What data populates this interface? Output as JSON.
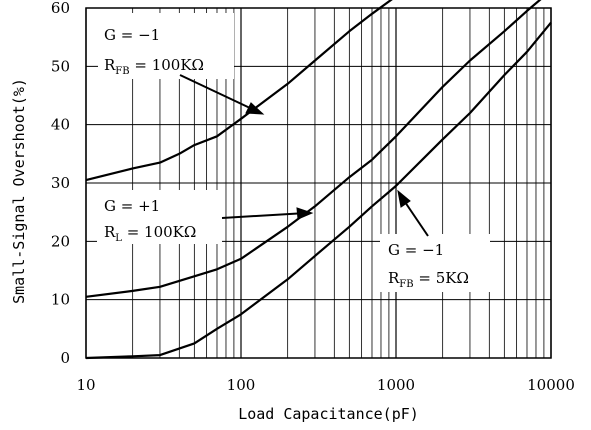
{
  "chart_data": {
    "type": "line",
    "xlabel": "Load Capacitance(pF)",
    "ylabel": "Small-Signal Overshoot(%)",
    "x_scale": "log",
    "xlim": [
      10,
      10000
    ],
    "ylim": [
      0,
      60
    ],
    "xticks": [
      10,
      100,
      1000,
      10000
    ],
    "xtick_labels": [
      "10",
      "100",
      "1000",
      "10000"
    ],
    "yticks": [
      0,
      10,
      20,
      30,
      40,
      50,
      60
    ],
    "ytick_labels": [
      "0",
      "10",
      "20",
      "30",
      "40",
      "50",
      "60"
    ],
    "grid": true,
    "series": [
      {
        "x": [
          10,
          20,
          30,
          40,
          50,
          70,
          100,
          200,
          300,
          500,
          700,
          1000
        ],
        "y": [
          30.5,
          32.5,
          33.5,
          35,
          36.5,
          38,
          41,
          47,
          51,
          56,
          59,
          62
        ]
      },
      {
        "x": [
          10,
          20,
          30,
          50,
          70,
          100,
          200,
          300,
          500,
          700,
          1000,
          2000,
          3000,
          5000,
          7000,
          10000
        ],
        "y": [
          10.5,
          11.5,
          12.2,
          14,
          15.2,
          17,
          22.5,
          26,
          31,
          34,
          38,
          46.5,
          51,
          56,
          59.5,
          63
        ]
      },
      {
        "x": [
          10,
          20,
          30,
          50,
          70,
          100,
          200,
          300,
          500,
          700,
          1000,
          2000,
          3000,
          5000,
          7000,
          10000
        ],
        "y": [
          0,
          0.3,
          0.5,
          2.5,
          5,
          7.5,
          13.5,
          17.5,
          22.5,
          26,
          29.5,
          37.5,
          42,
          48.5,
          52.5,
          57.5
        ]
      }
    ],
    "annotations": [
      {
        "lines": [
          {
            "main": "G = −1"
          },
          {
            "main": "R",
            "sub": "FB",
            "rest": " = 100KΩ"
          }
        ]
      },
      {
        "lines": [
          {
            "main": "G = +1"
          },
          {
            "main": "R",
            "sub": "L",
            "rest": " = 100KΩ"
          }
        ]
      },
      {
        "lines": [
          {
            "main": "G = −1"
          },
          {
            "main": "R",
            "sub": "FB",
            "rest": " = 5KΩ"
          }
        ]
      }
    ]
  }
}
